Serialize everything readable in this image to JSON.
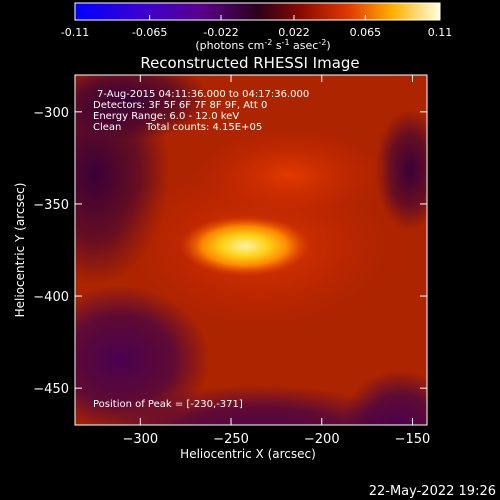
{
  "colorbar": {
    "ticks": [
      "-0.11",
      "-0.065",
      "-0.022",
      "0.022",
      "0.065",
      "0.11"
    ],
    "min": -0.11,
    "max": 0.11,
    "units_label": "(photons cm",
    "units_exp1": "-2",
    "units_mid": " s",
    "units_exp2": "-1",
    "units_end": " asec",
    "units_exp3": "-2",
    "units_close": ")"
  },
  "chart_data": {
    "type": "heatmap",
    "title": "Reconstructed RHESSI Image",
    "xlabel": "Heliocentric X (arcsec)",
    "ylabel": "Heliocentric Y (arcsec)",
    "xlim": [
      -336,
      -142
    ],
    "ylim": [
      -470,
      -280
    ],
    "xticks": [
      -300,
      -250,
      -200,
      -150
    ],
    "yticks": [
      -300,
      -350,
      -400,
      -450
    ],
    "peak": [
      -230,
      -371
    ],
    "colormap": [
      "#0000ff",
      "#4b0092",
      "#2b001a",
      "#c01a00",
      "#ff6a00",
      "#ffd000",
      "#ffffd0"
    ],
    "colors": {
      "frame": "#ffffff",
      "background": "#000000",
      "image_bg": "#ad2400"
    }
  },
  "annotations": {
    "time_range": "7-Aug-2015 04:11:36.000 to 04:17:36.000",
    "detectors": "Detectors: 3F 5F 6F 7F 8F 9F, Att 0",
    "energy_range": "Energy Range: 6.0 - 12.0 keV",
    "clean_label": "Clean",
    "total_counts": "Total counts: 4.15E+05",
    "peak_position": "Position of Peak = [-230,-371]"
  },
  "footer": {
    "timestamp": "22-May-2022 19:26"
  }
}
